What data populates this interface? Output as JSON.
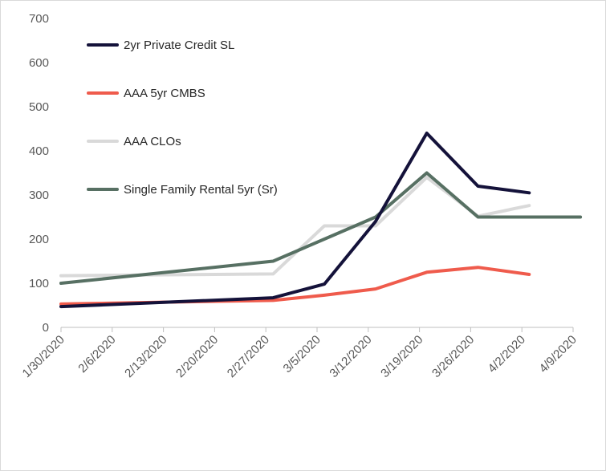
{
  "chart_data": {
    "type": "line",
    "title": "",
    "xlabel": "",
    "ylabel": "",
    "ylim": [
      0,
      700
    ],
    "y_ticks": [
      "0",
      "100",
      "200",
      "300",
      "400",
      "500",
      "600",
      "700"
    ],
    "x_ticks": [
      "1/30/2020",
      "2/6/2020",
      "2/13/2020",
      "2/20/2020",
      "2/27/2020",
      "3/5/2020",
      "3/12/2020",
      "3/19/2020",
      "3/26/2020",
      "4/2/2020",
      "4/9/2020"
    ],
    "grid": false,
    "legend_position": "top-left",
    "series": [
      {
        "name": "2yr Private Credit SL",
        "color": "#14123a",
        "points": [
          [
            "1/30/2020",
            47
          ],
          [
            "2/28/2020",
            67
          ],
          [
            "3/6/2020",
            98
          ],
          [
            "3/13/2020",
            240
          ],
          [
            "3/20/2020",
            440
          ],
          [
            "3/27/2020",
            320
          ],
          [
            "4/3/2020",
            305
          ]
        ]
      },
      {
        "name": "AAA 5yr CMBS",
        "color": "#ef5b4c",
        "points": [
          [
            "1/30/2020",
            53
          ],
          [
            "2/13/2020",
            57
          ],
          [
            "2/28/2020",
            61
          ],
          [
            "3/6/2020",
            73
          ],
          [
            "3/13/2020",
            87
          ],
          [
            "3/20/2020",
            125
          ],
          [
            "3/27/2020",
            136
          ],
          [
            "4/3/2020",
            120
          ]
        ]
      },
      {
        "name": "AAA CLOs",
        "color": "#d9d9d9",
        "points": [
          [
            "1/30/2020",
            117
          ],
          [
            "2/28/2020",
            121
          ],
          [
            "3/6/2020",
            230
          ],
          [
            "3/13/2020",
            230
          ],
          [
            "3/20/2020",
            340
          ],
          [
            "3/27/2020",
            252
          ],
          [
            "4/3/2020",
            276
          ]
        ]
      },
      {
        "name": "Single Family Rental 5yr (Sr)",
        "color": "#577063",
        "points": [
          [
            "1/30/2020",
            100
          ],
          [
            "2/28/2020",
            150
          ],
          [
            "3/6/2020",
            200
          ],
          [
            "3/13/2020",
            250
          ],
          [
            "3/20/2020",
            350
          ],
          [
            "3/27/2020",
            250
          ],
          [
            "4/3/2020",
            250
          ],
          [
            "4/10/2020",
            250
          ]
        ]
      }
    ]
  }
}
